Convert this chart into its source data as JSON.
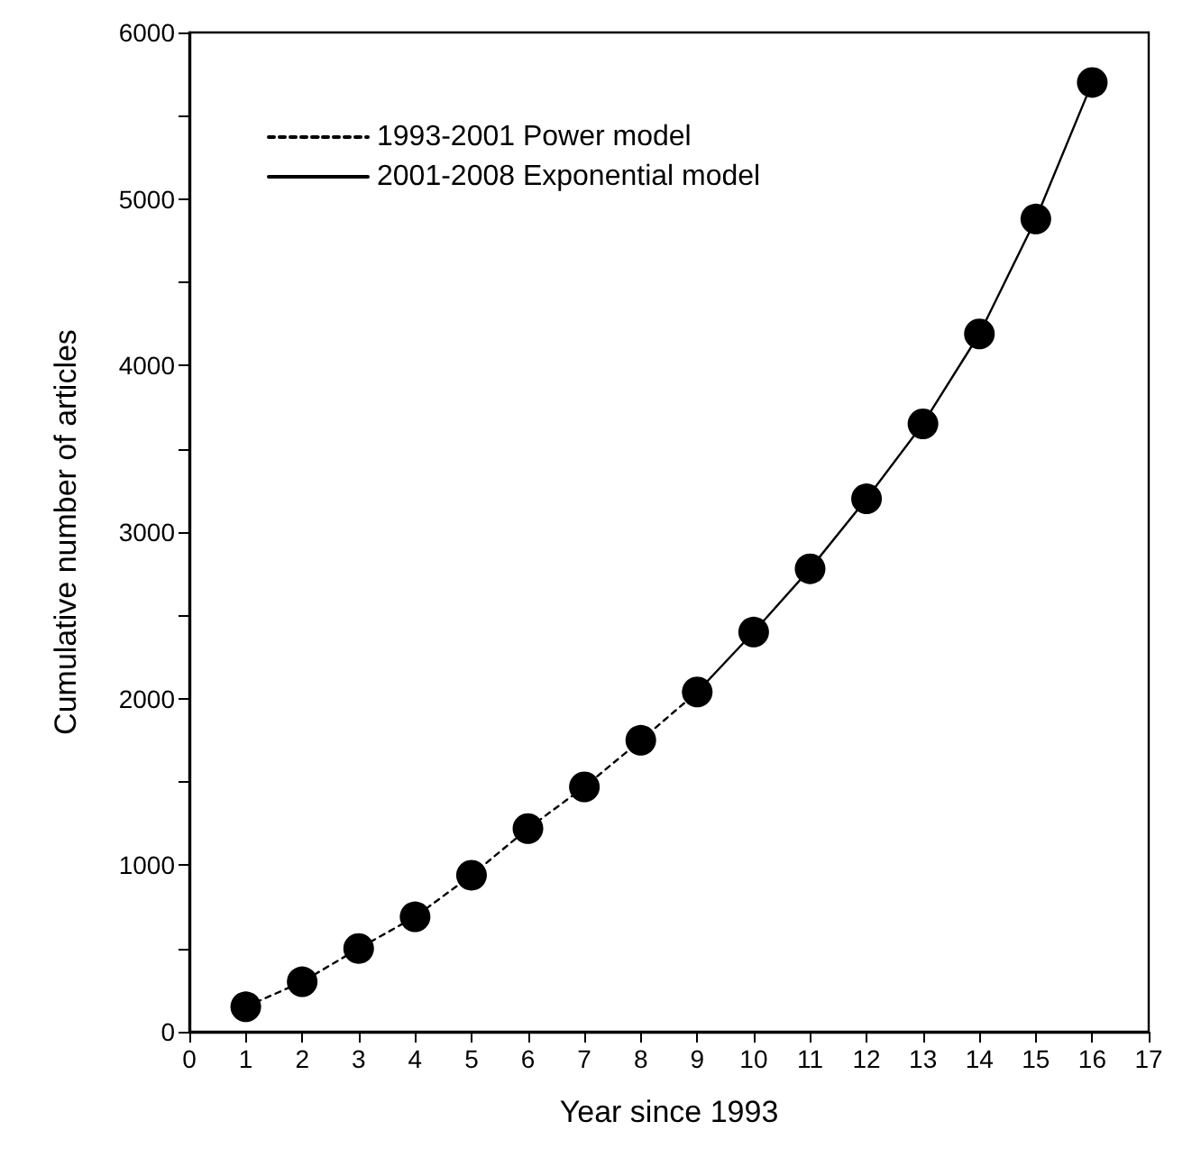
{
  "chart_data": {
    "type": "scatter",
    "xlabel": "Year since 1993",
    "ylabel": "Cumulative number of articles",
    "x": [
      1,
      2,
      3,
      4,
      5,
      6,
      7,
      8,
      9,
      10,
      11,
      12,
      13,
      14,
      15,
      16
    ],
    "series": [
      {
        "color": "#000000",
        "marker": "circle",
        "values": [
          150,
          300,
          500,
          690,
          940,
          1220,
          1470,
          1750,
          2040,
          2400,
          2780,
          3200,
          3650,
          4190,
          4880,
          5700
        ]
      },
      {
        "type": "line",
        "name": "1993-2001 Power model",
        "color": "#000000",
        "line_style": "dotted",
        "marker": "none",
        "x": [
          1,
          2,
          3,
          4,
          5,
          6,
          7,
          8,
          9
        ],
        "values": [
          150,
          300,
          500,
          690,
          940,
          1220,
          1470,
          1750,
          2040
        ]
      },
      {
        "type": "line",
        "name": "2001-2008 Exponential model",
        "color": "#000000",
        "line_style": "solid",
        "marker": "none",
        "x": [
          9,
          10,
          11,
          12,
          13,
          14,
          15,
          16
        ],
        "values": [
          2040,
          2400,
          2780,
          3200,
          3650,
          4190,
          4880,
          5700
        ]
      }
    ],
    "xlim": [
      0,
      17
    ],
    "xticks": [
      0,
      1,
      2,
      3,
      4,
      5,
      6,
      7,
      8,
      9,
      10,
      11,
      12,
      13,
      14,
      15,
      16,
      17
    ],
    "ylim": [
      0,
      6000
    ],
    "yticks": [
      0,
      {
        "value": 500,
        "label": null
      },
      1000,
      {
        "value": 1500,
        "label": null
      },
      2000,
      {
        "value": 2500,
        "label": null
      },
      3000,
      {
        "value": 3500,
        "label": null
      },
      4000,
      {
        "value": 4500,
        "label": null
      },
      5000,
      {
        "value": 5500,
        "label": null
      },
      6000
    ],
    "grid": false,
    "legend": "top left"
  }
}
